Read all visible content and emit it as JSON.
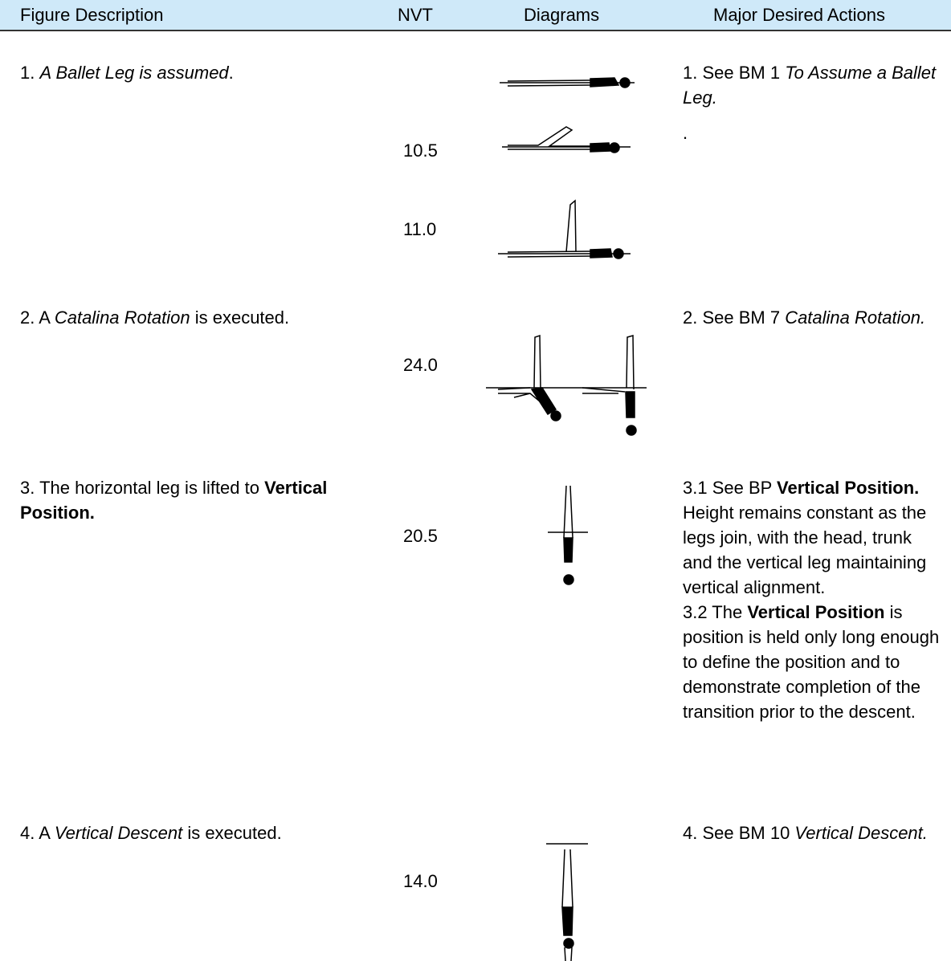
{
  "header": {
    "columns": [
      "Figure Description",
      "NVT",
      "Diagrams",
      "Major Desired Actions"
    ]
  },
  "rows": [
    {
      "description": [
        "1. ",
        "A Ballet Leg is assumed",
        "."
      ],
      "nvt": [
        "10.5",
        "11.0"
      ],
      "actions": [
        [
          "1. See BM 1 ",
          "To Assume a Ballet Leg."
        ],
        [
          "."
        ]
      ]
    },
    {
      "description": [
        "2. A ",
        "Catalina Rotation",
        " is executed."
      ],
      "nvt": [
        "24.0"
      ],
      "actions": [
        [
          "2. See BM 7 ",
          "Catalina Rotation."
        ]
      ]
    },
    {
      "description": [
        "3. The horizontal leg is lifted to ",
        "Vertical Position."
      ],
      "nvt": [
        "20.5"
      ],
      "actions": [
        [
          "3.1 See BP ",
          "Vertical Position.",
          " Height remains constant as the legs join, with the head, trunk and the vertical leg maintaining vertical alignment."
        ],
        [
          "3.2 The ",
          "Vertical Position",
          " is position is held only long enough to define the position and to demonstrate completion of the transition prior to the descent."
        ]
      ]
    },
    {
      "description": [
        "4. A ",
        "Vertical Descent",
        " is executed."
      ],
      "nvt": [
        "14.0"
      ],
      "actions": [
        [
          "4. See BM 10 ",
          "Vertical Descent."
        ]
      ]
    }
  ]
}
